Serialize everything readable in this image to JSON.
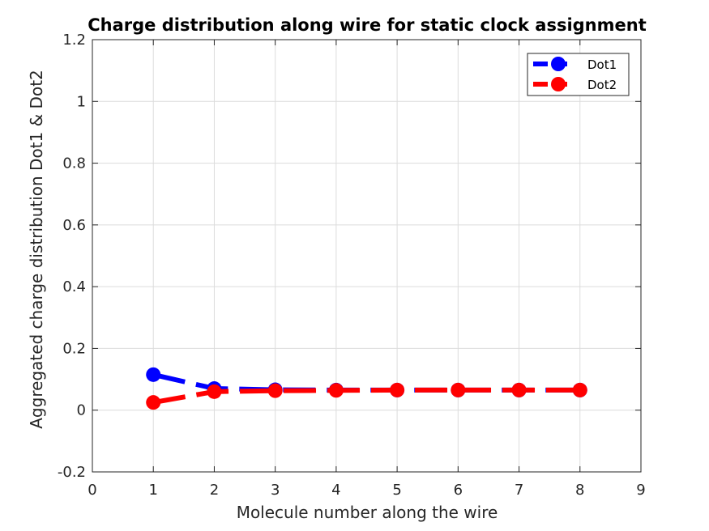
{
  "chart_data": {
    "type": "line",
    "title": "Charge distribution along wire for static clock assignment",
    "xlabel": "Molecule number along the wire",
    "ylabel": "Aggregated charge distribution Dot1 & Dot2",
    "xlim": [
      0,
      9
    ],
    "ylim": [
      -0.2,
      1.2
    ],
    "xticks": [
      0,
      1,
      2,
      3,
      4,
      5,
      6,
      7,
      8,
      9
    ],
    "yticks": [
      -0.2,
      0,
      0.2,
      0.4,
      0.6,
      0.8,
      1,
      1.2
    ],
    "ytick_labels": [
      "-0.2",
      "0",
      "0.2",
      "0.4",
      "0.6",
      "0.8",
      "1",
      "1.2"
    ],
    "grid": true,
    "legend_position": "top-right",
    "line_style": "dashed",
    "series": [
      {
        "name": "Dot1",
        "color": "#0000ff",
        "x": [
          1,
          2,
          3,
          4,
          5,
          6,
          7,
          8
        ],
        "values": [
          0.115,
          0.07,
          0.066,
          0.065,
          0.065,
          0.065,
          0.065,
          0.065
        ]
      },
      {
        "name": "Dot2",
        "color": "#ff0000",
        "x": [
          1,
          2,
          3,
          4,
          5,
          6,
          7,
          8
        ],
        "values": [
          0.025,
          0.06,
          0.063,
          0.064,
          0.065,
          0.065,
          0.065,
          0.065
        ]
      }
    ]
  }
}
